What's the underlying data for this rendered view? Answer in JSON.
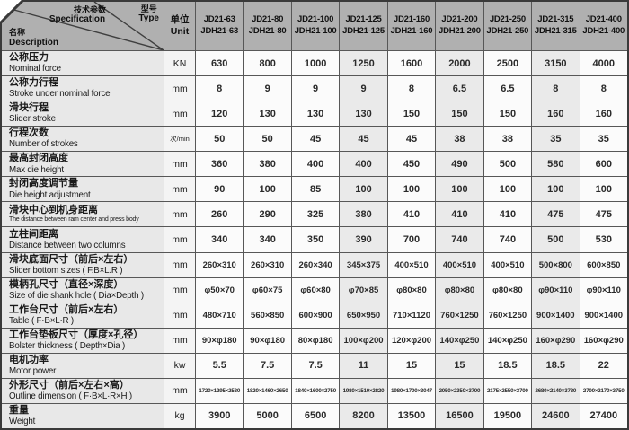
{
  "colors": {
    "header_bg": "#b0b0b0",
    "desc_bg": "#e8e8e8",
    "unit_bg": "#f4f4f4",
    "cell_bg": "#fbfbfb",
    "band_bg": "#eaeaea",
    "grid_line": "#575757",
    "outer_border": "#3a3a3a"
  },
  "header": {
    "corner": {
      "spec_zh": "技术参数",
      "spec_en": "Specification",
      "type_zh": "型号",
      "type_en": "Type",
      "name_zh": "名称",
      "name_en": "Description"
    },
    "unit_zh": "单位",
    "unit_en": "Unit",
    "models": [
      {
        "line1": "JD21-63",
        "line2": "JDH21-63"
      },
      {
        "line1": "JD21-80",
        "line2": "JDH21-80"
      },
      {
        "line1": "JD21-100",
        "line2": "JDH21-100"
      },
      {
        "line1": "JD21-125",
        "line2": "JDH21-125"
      },
      {
        "line1": "JD21-160",
        "line2": "JDH21-160"
      },
      {
        "line1": "JD21-200",
        "line2": "JDH21-200"
      },
      {
        "line1": "JD21-250",
        "line2": "JDH21-250"
      },
      {
        "line1": "JD21-315",
        "line2": "JDH21-315"
      },
      {
        "line1": "JD21-400",
        "line2": "JDH21-400"
      }
    ]
  },
  "rows": [
    {
      "zh": "公称压力",
      "en": "Nominal force",
      "unit": "KN",
      "values": [
        "630",
        "800",
        "1000",
        "1250",
        "1600",
        "2000",
        "2500",
        "3150",
        "4000"
      ]
    },
    {
      "zh": "公称力行程",
      "en": "Stroke under nominal force",
      "unit": "mm",
      "values": [
        "8",
        "9",
        "9",
        "9",
        "8",
        "6.5",
        "6.5",
        "8",
        "8"
      ]
    },
    {
      "zh": "滑块行程",
      "en": "Slider stroke",
      "unit": "mm",
      "values": [
        "120",
        "130",
        "130",
        "130",
        "150",
        "150",
        "150",
        "160",
        "160"
      ]
    },
    {
      "zh": "行程次数",
      "en": "Number of strokes",
      "unit": "次/min",
      "values": [
        "50",
        "50",
        "45",
        "45",
        "45",
        "38",
        "38",
        "35",
        "35"
      ]
    },
    {
      "zh": "最高封闭高度",
      "en": "Max die height",
      "unit": "mm",
      "values": [
        "360",
        "380",
        "400",
        "400",
        "450",
        "490",
        "500",
        "580",
        "600"
      ]
    },
    {
      "zh": "封闭高度调节量",
      "en": "Die height adjustment",
      "unit": "mm",
      "values": [
        "90",
        "100",
        "85",
        "100",
        "100",
        "100",
        "100",
        "100",
        "100"
      ]
    },
    {
      "zh": "滑块中心到机身距离",
      "en": "The distance between ram center and press body",
      "unit": "mm",
      "values": [
        "260",
        "290",
        "325",
        "380",
        "410",
        "410",
        "410",
        "475",
        "475"
      ]
    },
    {
      "zh": "立柱间距离",
      "en": "Distance between two columns",
      "unit": "mm",
      "values": [
        "340",
        "340",
        "350",
        "390",
        "700",
        "740",
        "740",
        "500",
        "530"
      ]
    },
    {
      "zh": "滑块底面尺寸（前后×左右）",
      "en": "Slider bottom sizes ( F.B×L.R )",
      "unit": "mm",
      "values": [
        "260×310",
        "260×310",
        "260×340",
        "345×375",
        "400×510",
        "400×510",
        "400×510",
        "500×800",
        "600×850"
      ]
    },
    {
      "zh": "模柄孔尺寸（直径×深度）",
      "en": "Size of die shank hole ( Dia×Depth )",
      "unit": "mm",
      "values": [
        "φ50×70",
        "φ60×75",
        "φ60×80",
        "φ70×85",
        "φ80×80",
        "φ80×80",
        "φ80×80",
        "φ90×110",
        "φ90×110"
      ]
    },
    {
      "zh": "工作台尺寸（前后×左右）",
      "en": "Table ( F·B×L·R )",
      "unit": "mm",
      "values": [
        "480×710",
        "560×850",
        "600×900",
        "650×950",
        "710×1120",
        "760×1250",
        "760×1250",
        "900×1400",
        "900×1400"
      ]
    },
    {
      "zh": "工作台垫板尺寸（厚度×孔径）",
      "en": "Bolster thickness ( Depth×Dia )",
      "unit": "mm",
      "values": [
        "90×φ180",
        "90×φ180",
        "80×φ180",
        "100×φ200",
        "120×φ200",
        "140×φ250",
        "140×φ250",
        "160×φ290",
        "160×φ290"
      ]
    },
    {
      "zh": "电机功率",
      "en": "Motor power",
      "unit": "kw",
      "values": [
        "5.5",
        "7.5",
        "7.5",
        "11",
        "15",
        "15",
        "18.5",
        "18.5",
        "22"
      ]
    },
    {
      "zh": "外形尺寸（前后×左右×高）",
      "en": "Outline dimension ( F·B×L·R×H )",
      "unit": "mm",
      "values": [
        "1720×1295×2530",
        "1820×1460×2650",
        "1840×1600×2750",
        "1980×1510×2820",
        "1980×1700×3047",
        "2050×2350×3700",
        "2175×2550×3700",
        "2680×2140×3730",
        "2700×2170×3750"
      ]
    },
    {
      "zh": "重量",
      "en": "Weight",
      "unit": "kg",
      "values": [
        "3900",
        "5000",
        "6500",
        "8200",
        "13500",
        "16500",
        "19500",
        "24600",
        "27400"
      ]
    }
  ]
}
